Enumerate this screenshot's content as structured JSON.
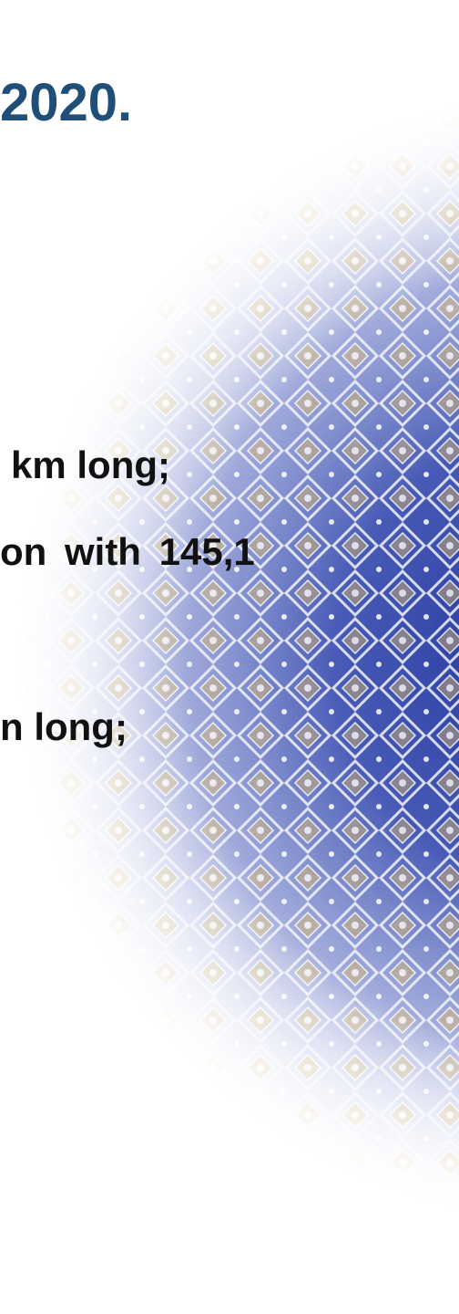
{
  "slide": {
    "title": "2020.",
    "lines": [
      "km long;",
      "on  with  145,1",
      "n long;"
    ]
  },
  "colors": {
    "title": "#1f4e79",
    "body_text": "#111111",
    "mosaic_dark_blue": "#2a3f9e",
    "mosaic_gold": "#d9b35c",
    "mosaic_light": "#eef0fa"
  },
  "icons": {
    "background": "mosaic-ornament-icon"
  }
}
